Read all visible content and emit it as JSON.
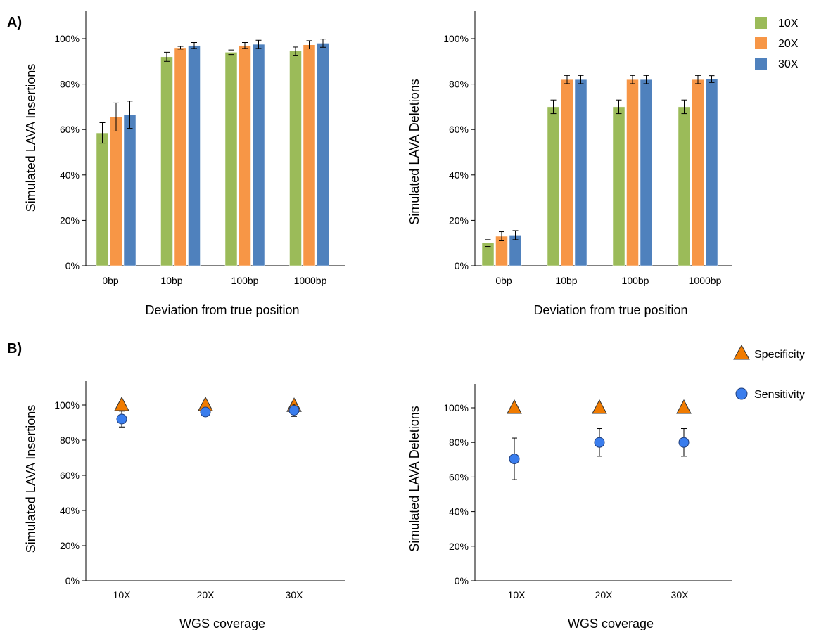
{
  "panel_labels": {
    "a": "A)",
    "b": "B)"
  },
  "legend_coverage": [
    {
      "label": "10X",
      "color": "#9BBB59"
    },
    {
      "label": "20X",
      "color": "#F79646"
    },
    {
      "label": "30X",
      "color": "#4F81BD"
    }
  ],
  "legend_metrics": [
    {
      "label": "Specificity",
      "color": "#F07B00",
      "shape": "triangle"
    },
    {
      "label": "Sensitivity",
      "color": "#3A7DED",
      "shape": "circle"
    }
  ],
  "chart_data": [
    {
      "type": "bar",
      "panel": "A",
      "xlabel": "Deviation from true position",
      "ylabel": "Simulated LAVA Insertions",
      "categories": [
        "0bp",
        "10bp",
        "100bp",
        "1000bp"
      ],
      "ylim": [
        0,
        100
      ],
      "yticks": [
        "0%",
        "20%",
        "40%",
        "60%",
        "80%",
        "100%"
      ],
      "series": [
        {
          "name": "10X",
          "color": "#9BBB59",
          "values": [
            58.5,
            92,
            94,
            94.5
          ],
          "errors": [
            4.5,
            2,
            1,
            1.8
          ]
        },
        {
          "name": "20X",
          "color": "#F79646",
          "values": [
            65.5,
            96,
            97,
            97.3
          ],
          "errors": [
            6.2,
            0.6,
            1.3,
            1.8
          ]
        },
        {
          "name": "30X",
          "color": "#4F81BD",
          "values": [
            66.5,
            97,
            97.5,
            98
          ],
          "errors": [
            6,
            1.3,
            1.8,
            1.8
          ]
        }
      ]
    },
    {
      "type": "bar",
      "panel": "A",
      "xlabel": "Deviation from true position",
      "ylabel": "Simulated LAVA Deletions",
      "categories": [
        "0bp",
        "10bp",
        "100bp",
        "1000bp"
      ],
      "ylim": [
        0,
        100
      ],
      "yticks": [
        "0%",
        "20%",
        "40%",
        "60%",
        "80%",
        "100%"
      ],
      "series": [
        {
          "name": "10X",
          "color": "#9BBB59",
          "values": [
            10,
            70,
            70,
            70
          ],
          "errors": [
            1.5,
            3,
            3,
            3
          ]
        },
        {
          "name": "20X",
          "color": "#F79646",
          "values": [
            13,
            82,
            82,
            82
          ],
          "errors": [
            2,
            1.8,
            1.8,
            1.8
          ]
        },
        {
          "name": "30X",
          "color": "#4F81BD",
          "values": [
            13.5,
            82,
            82,
            82.2
          ],
          "errors": [
            2,
            1.8,
            1.8,
            1.5
          ]
        }
      ]
    },
    {
      "type": "scatter",
      "panel": "B",
      "xlabel": "WGS coverage",
      "ylabel": "Simulated LAVA Insertions",
      "categories": [
        "10X",
        "20X",
        "30X"
      ],
      "ylim": [
        0,
        100
      ],
      "yticks": [
        "0%",
        "20%",
        "40%",
        "60%",
        "80%",
        "100%"
      ],
      "series": [
        {
          "name": "Specificity",
          "color": "#F07B00",
          "shape": "triangle",
          "values": [
            100,
            100,
            99.5
          ],
          "errors": [
            0,
            0,
            0
          ]
        },
        {
          "name": "Sensitivity",
          "color": "#3A7DED",
          "shape": "circle",
          "values": [
            92,
            96,
            97
          ],
          "errors": [
            4.5,
            1,
            3.5
          ]
        }
      ]
    },
    {
      "type": "scatter",
      "panel": "B",
      "xlabel": "WGS coverage",
      "ylabel": "Simulated LAVA Deletions",
      "categories": [
        "10X",
        "20X",
        "30X"
      ],
      "ylim": [
        0,
        100
      ],
      "yticks": [
        "0%",
        "20%",
        "40%",
        "60%",
        "80%",
        "100%"
      ],
      "series": [
        {
          "name": "Specificity",
          "color": "#F07B00",
          "shape": "triangle",
          "values": [
            100,
            100,
            100
          ],
          "errors": [
            0,
            0,
            0
          ]
        },
        {
          "name": "Sensitivity",
          "color": "#3A7DED",
          "shape": "circle",
          "values": [
            70.5,
            80,
            80
          ],
          "errors": [
            12,
            8,
            8
          ]
        }
      ]
    }
  ]
}
